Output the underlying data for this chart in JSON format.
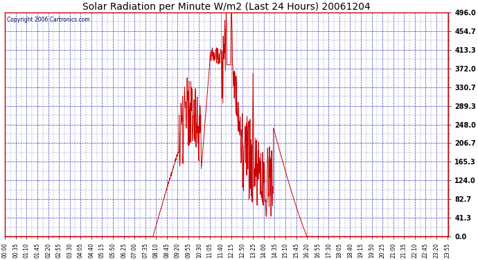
{
  "title": "Solar Radiation per Minute W/m2 (Last 24 Hours) 20061204",
  "copyright": "Copyright 2006 Cartronics.com",
  "background_color": "#ffffff",
  "plot_background": "#ffffff",
  "line_color": "#cc0000",
  "grid_color": "#0000aa",
  "axis_color": "#cc0000",
  "title_color": "#000000",
  "ylim": [
    0.0,
    496.0
  ],
  "yticks": [
    0.0,
    41.3,
    82.7,
    124.0,
    165.3,
    206.7,
    248.0,
    289.3,
    330.7,
    372.0,
    413.3,
    454.7,
    496.0
  ],
  "num_points": 1440,
  "tick_interval": 35,
  "figwidth": 6.9,
  "figheight": 3.75,
  "dpi": 100
}
